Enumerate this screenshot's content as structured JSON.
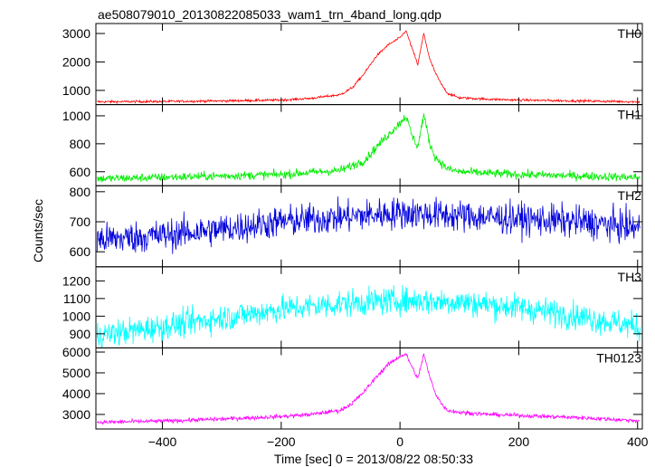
{
  "title": "ae508079010_20130822085033_wam1_trn_4band_long.qdp",
  "chart_data": {
    "type": "line",
    "title": "ae508079010_20130822085033_wam1_trn_4band_long.qdp",
    "xlabel": "Time [sec] 0 = 2013/08/22 08:50:33",
    "ylabel": "Counts/sec",
    "xlim": [
      -512,
      408
    ],
    "x_ticks": [
      -400,
      -200,
      0,
      200,
      400
    ],
    "grid": false,
    "panels": [
      {
        "name": "TH0",
        "color": "#ff0000",
        "ylim": [
          500,
          3350
        ],
        "y_ticks": [
          1000,
          2000,
          3000
        ],
        "x": [
          -510,
          -400,
          -300,
          -200,
          -150,
          -100,
          -80,
          -60,
          -40,
          -20,
          0,
          10,
          20,
          30,
          40,
          50,
          60,
          70,
          80,
          100,
          150,
          200,
          300,
          400
        ],
        "y": [
          600,
          610,
          630,
          660,
          720,
          850,
          1100,
          1600,
          2200,
          2600,
          2850,
          3100,
          2500,
          1900,
          3000,
          2100,
          1600,
          1200,
          900,
          740,
          690,
          660,
          630,
          600
        ],
        "noise": 30
      },
      {
        "name": "TH1",
        "color": "#00ee00",
        "ylim": [
          500,
          1080
        ],
        "y_ticks": [
          600,
          800,
          1000
        ],
        "x": [
          -510,
          -400,
          -300,
          -200,
          -100,
          -60,
          -30,
          0,
          10,
          20,
          30,
          40,
          50,
          60,
          80,
          100,
          150,
          200,
          300,
          400
        ],
        "y": [
          550,
          560,
          570,
          580,
          610,
          680,
          820,
          950,
          1000,
          860,
          780,
          1010,
          800,
          700,
          620,
          600,
          590,
          580,
          570,
          560
        ],
        "noise": 22
      },
      {
        "name": "TH2",
        "color": "#0000dd",
        "ylim": [
          550,
          820
        ],
        "y_ticks": [
          600,
          700,
          800
        ],
        "x": [
          -510,
          -400,
          -300,
          -200,
          -100,
          0,
          100,
          200,
          300,
          400
        ],
        "y": [
          640,
          655,
          675,
          700,
          715,
          730,
          720,
          710,
          700,
          680
        ],
        "noise": 38
      },
      {
        "name": "TH3",
        "color": "#00ffff",
        "ylim": [
          820,
          1280
        ],
        "y_ticks": [
          900,
          1000,
          1100,
          1200
        ],
        "x": [
          -510,
          -400,
          -300,
          -200,
          -100,
          0,
          100,
          200,
          300,
          400
        ],
        "y": [
          890,
          940,
          990,
          1040,
          1070,
          1090,
          1080,
          1050,
          1000,
          940
        ],
        "noise": 55
      },
      {
        "name": "TH0123",
        "color": "#ff00ff",
        "ylim": [
          2300,
          6200
        ],
        "y_ticks": [
          3000,
          4000,
          5000,
          6000
        ],
        "x": [
          -510,
          -400,
          -300,
          -200,
          -150,
          -100,
          -80,
          -60,
          -40,
          -20,
          0,
          10,
          20,
          30,
          40,
          50,
          60,
          70,
          80,
          100,
          150,
          200,
          300,
          400
        ],
        "y": [
          2620,
          2680,
          2780,
          2900,
          3000,
          3200,
          3550,
          4100,
          4800,
          5400,
          5800,
          5900,
          5300,
          4700,
          5900,
          4800,
          4000,
          3500,
          3200,
          3100,
          3000,
          2950,
          2850,
          2700
        ],
        "noise": 70
      }
    ]
  }
}
